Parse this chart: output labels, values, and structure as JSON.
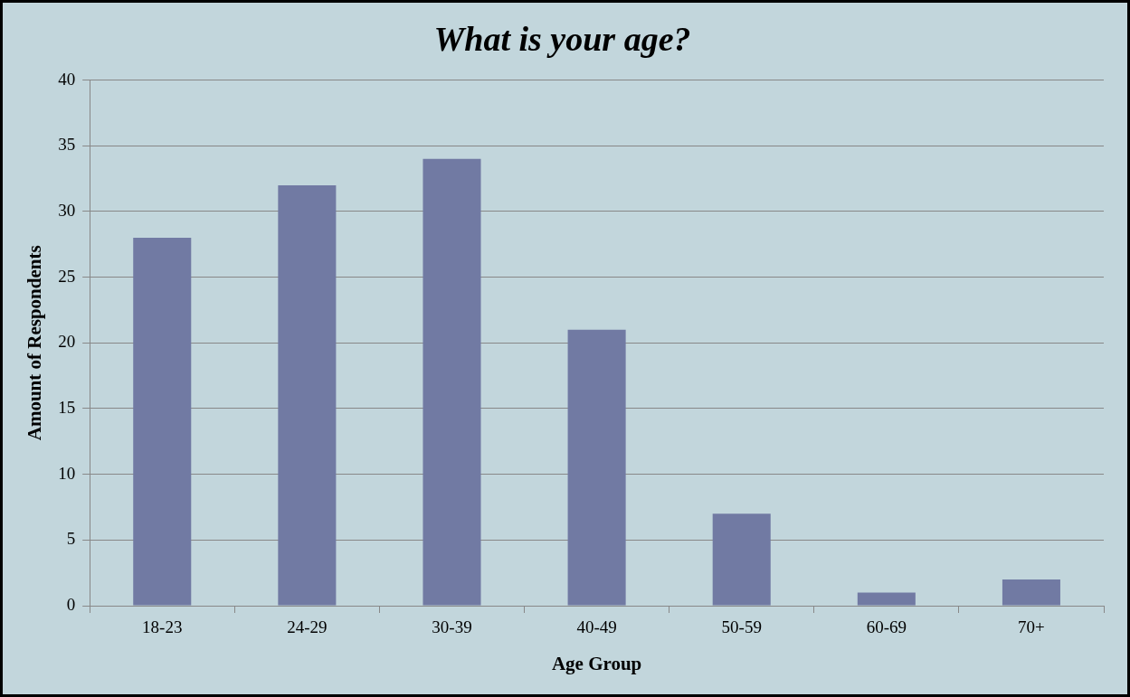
{
  "chart_data": {
    "type": "bar",
    "title": "What is your age?",
    "xlabel": "Age Group",
    "ylabel": "Amount of Respondents",
    "categories": [
      "18-23",
      "24-29",
      "30-39",
      "40-49",
      "50-59",
      "60-69",
      "70+"
    ],
    "values": [
      28,
      32,
      34,
      21,
      7,
      1,
      2
    ],
    "color": "#717aa3",
    "ylim": [
      0,
      40
    ],
    "yticks": [
      0,
      5,
      10,
      15,
      20,
      25,
      30,
      35,
      40
    ],
    "grid": "y",
    "legend": false
  }
}
